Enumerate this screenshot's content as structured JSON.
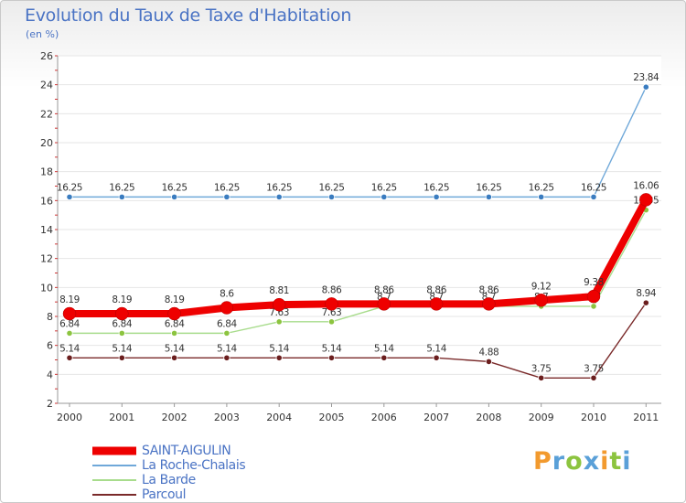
{
  "header": {
    "title": "Evolution du Taux de Taxe d'Habitation",
    "unit": "(en %)"
  },
  "brand": {
    "name": "Proxiti",
    "colors": [
      "#f29a2e",
      "#5aa0d8",
      "#8cc43f",
      "#5aa0d8",
      "#f29a2e",
      "#8cc43f",
      "#5aa0d8"
    ]
  },
  "chart_data": {
    "type": "line",
    "title": "Evolution du Taux de Taxe d'Habitation",
    "ylabel": "(en %)",
    "xlabel": "",
    "ylim": [
      2,
      26
    ],
    "yticks": [
      2,
      4,
      6,
      8,
      10,
      12,
      14,
      16,
      18,
      20,
      22,
      24,
      26
    ],
    "x": [
      "2000",
      "2001",
      "2002",
      "2003",
      "2004",
      "2005",
      "2006",
      "2007",
      "2008",
      "2009",
      "2010",
      "2011"
    ],
    "legend_position": "bottom-left",
    "series": [
      {
        "name": "La Roche-Chalais",
        "color": "#6fa8d9",
        "marker": "#3a7cc0",
        "values": [
          16.25,
          16.25,
          16.25,
          16.25,
          16.25,
          16.25,
          16.25,
          16.25,
          16.25,
          16.25,
          16.25,
          23.84
        ],
        "labels": [
          "16.25",
          "16.25",
          "16.25",
          "16.25",
          "16.25",
          "16.25",
          "16.25",
          "16.25",
          "16.25",
          "16.25",
          "16.25",
          "23.84"
        ]
      },
      {
        "name": "La Barde",
        "color": "#a8dc8c",
        "marker": "#8cc43f",
        "values": [
          6.84,
          6.84,
          6.84,
          6.84,
          7.63,
          7.63,
          8.7,
          8.7,
          8.7,
          8.7,
          8.7,
          15.35
        ],
        "labels": [
          "6.84",
          "6.84",
          "6.84",
          "6.84",
          "7.63",
          "7.63",
          "8.7",
          "8.7",
          "8.7",
          "8.7",
          "8.7",
          "15.35"
        ]
      },
      {
        "name": "Parcoul",
        "color": "#7a2a2a",
        "marker": "#6b1e1e",
        "values": [
          5.14,
          5.14,
          5.14,
          5.14,
          5.14,
          5.14,
          5.14,
          5.14,
          4.88,
          3.75,
          3.75,
          8.94
        ],
        "labels": [
          "5.14",
          "5.14",
          "5.14",
          "5.14",
          "5.14",
          "5.14",
          "5.14",
          "5.14",
          "4.88",
          "3.75",
          "3.75",
          "8.94"
        ]
      },
      {
        "name": "SAINT-AIGULIN",
        "color": "#ee0000",
        "marker": "#ee0000",
        "values": [
          8.19,
          8.19,
          8.19,
          8.6,
          8.81,
          8.86,
          8.86,
          8.86,
          8.86,
          9.12,
          9.38,
          16.06
        ],
        "labels": [
          "8.19",
          "8.19",
          "8.19",
          "8.6",
          "8.81",
          "8.86",
          "8.86",
          "8.86",
          "8.86",
          "9.12",
          "9.38",
          "16.06"
        ]
      }
    ]
  },
  "legend": {
    "items": [
      {
        "label": "SAINT-AIGULIN",
        "color": "#ee0000"
      },
      {
        "label": "La Roche-Chalais",
        "color": "#6fa8d9"
      },
      {
        "label": "La Barde",
        "color": "#a8dc8c"
      },
      {
        "label": "Parcoul",
        "color": "#7a2a2a"
      }
    ]
  }
}
